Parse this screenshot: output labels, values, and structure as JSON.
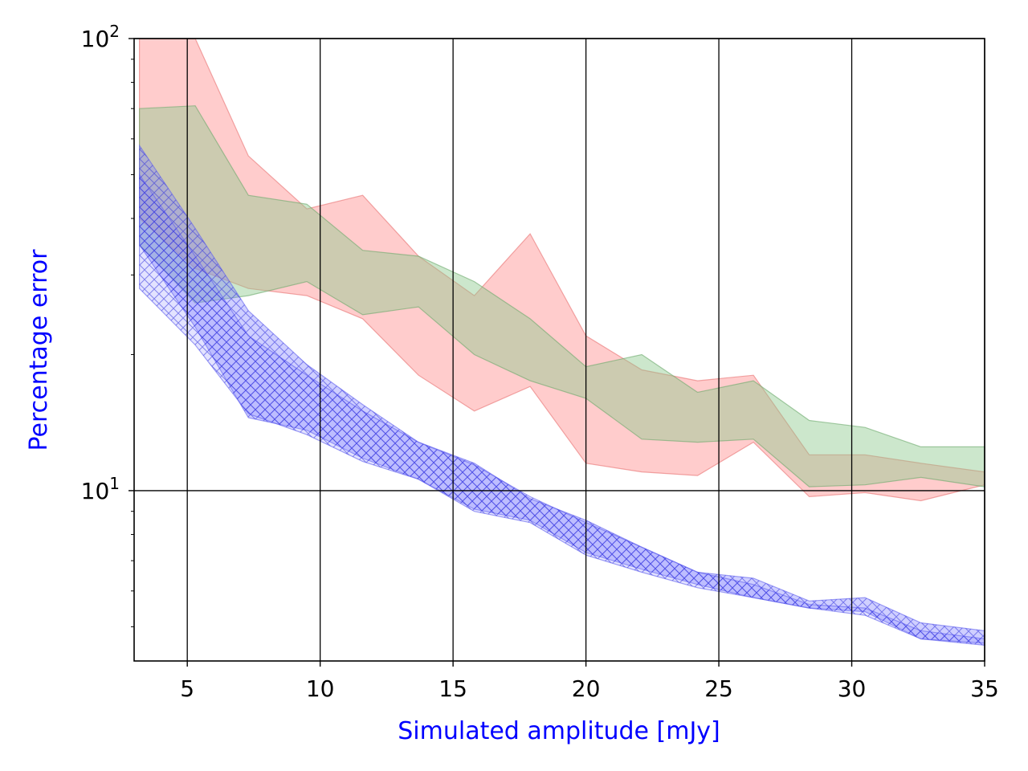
{
  "chart_data": {
    "type": "area",
    "title": "",
    "xlabel": "Simulated amplitude [mJy]",
    "ylabel": "Percentage error",
    "label_color": "#0000ff",
    "xlim": [
      3,
      35
    ],
    "ylim": [
      4.2,
      100
    ],
    "yscale": "log",
    "grid": true,
    "x_ticks": [
      5,
      10,
      15,
      20,
      25,
      30,
      35
    ],
    "x_tick_labels": [
      "5",
      "10",
      "15",
      "20",
      "25",
      "30",
      "35"
    ],
    "y_ticks": [
      {
        "value": 10,
        "base": "10",
        "exp": "1"
      },
      {
        "value": 100,
        "base": "10",
        "exp": "2"
      }
    ],
    "x": [
      3.2,
      5.3,
      7.3,
      9.5,
      11.6,
      13.7,
      15.8,
      17.9,
      20.0,
      22.1,
      24.2,
      26.3,
      28.4,
      30.5,
      32.6,
      35.0
    ],
    "series": [
      {
        "name": "red band",
        "color": "#ff9a9a",
        "stroke": "#e87070",
        "opacity": 0.5,
        "upper": [
          100,
          100,
          55,
          42,
          45,
          33,
          27,
          37,
          22,
          18.5,
          17.5,
          18,
          12,
          12,
          11.5,
          11
        ],
        "lower": [
          40,
          31,
          28,
          27,
          24,
          18,
          15,
          17,
          11.5,
          11,
          10.8,
          12.8,
          9.7,
          9.9,
          9.5,
          10.3
        ]
      },
      {
        "name": "green band",
        "color": "#8fc98f",
        "stroke": "#6aa86a",
        "opacity": 0.45,
        "upper": [
          70,
          71,
          45,
          43,
          34,
          33,
          29,
          24,
          18.8,
          20,
          16.5,
          17.5,
          14.3,
          13.8,
          12.5,
          12.5
        ],
        "lower": [
          35,
          26,
          27,
          29,
          24.5,
          25.5,
          20,
          17.5,
          16,
          13,
          12.8,
          13,
          10.2,
          10.3,
          10.7,
          10.2
        ]
      },
      {
        "name": "blue band",
        "color": "#8080ff",
        "stroke": "#6060ee",
        "opacity": 0.38,
        "upper": [
          58,
          38,
          25,
          19,
          15.5,
          12.8,
          11.5,
          9.6,
          8.6,
          7.5,
          6.6,
          6.4,
          5.7,
          5.8,
          5.1,
          4.9
        ],
        "lower": [
          35,
          23,
          14.5,
          13.6,
          11.8,
          10.6,
          9.1,
          8.6,
          7.3,
          6.7,
          6.2,
          5.8,
          5.5,
          5.4,
          4.7,
          4.55
        ],
        "hatched": true
      },
      {
        "name": "blue band 2",
        "color": "#8080ff",
        "stroke": "#6060ee",
        "opacity": 0.22,
        "upper": [
          50,
          33,
          22,
          18,
          15,
          12.8,
          11.4,
          9.7,
          8.5,
          7.5,
          6.6,
          6.2,
          5.6,
          5.5,
          4.9,
          4.7
        ],
        "lower": [
          28,
          21,
          14.8,
          13.3,
          11.6,
          10.6,
          9.0,
          8.5,
          7.2,
          6.6,
          6.1,
          5.8,
          5.5,
          5.3,
          4.7,
          4.6
        ],
        "hatched": true
      }
    ]
  }
}
